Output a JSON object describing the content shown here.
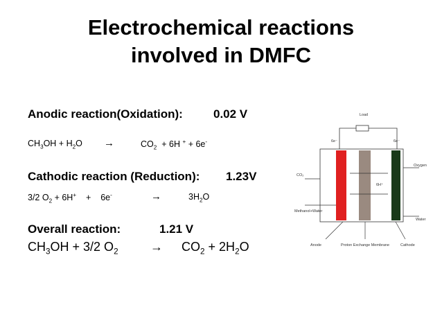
{
  "title": [
    "Electrochemical reactions",
    "involved in DMFC"
  ],
  "anodic": {
    "label": "Anodic reaction(Oxidation):",
    "value": "0.02 V",
    "equation": [
      "CH",
      "3",
      "OH + H",
      "2",
      "O",
      "→",
      "CO",
      "2",
      "+ 6H",
      "+",
      "+ 6e",
      "-"
    ]
  },
  "cathodic": {
    "label": "Cathodic reaction (Reduction):",
    "value": "1.23V",
    "equation": [
      "3/2 O",
      "2",
      "+ 6H",
      "+",
      "+",
      "6e",
      "-",
      "→",
      "3H",
      "2",
      "O"
    ]
  },
  "overall": {
    "label": "Overall reaction:",
    "value": "1.21 V",
    "equation": [
      "CH",
      "3",
      "OH + 3/2 O",
      "2",
      "→",
      "CO",
      "2",
      "+ 2H",
      "2",
      "O"
    ]
  },
  "diagram": {
    "load": "Load",
    "electron_left": "6e⁻",
    "electron_right": "6e⁻",
    "co2": "CO₂",
    "oxygen": "Oxygen",
    "proton": "6H⁺",
    "fuel": "Methanol+Water",
    "water": "Water",
    "anode": "Anode",
    "membrane": "Proton Exchange Membrane",
    "cathode": "Cathode"
  }
}
